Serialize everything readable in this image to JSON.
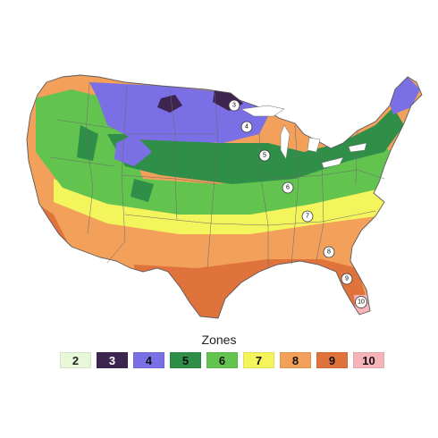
{
  "legend": {
    "title": "Zones",
    "items": [
      {
        "label": "2",
        "color": "#e7f7d8",
        "text_color": "#222222"
      },
      {
        "label": "3",
        "color": "#3d2550",
        "text_color": "#ffffff"
      },
      {
        "label": "4",
        "color": "#7b6fe6",
        "text_color": "#111111"
      },
      {
        "label": "5",
        "color": "#2f8f48",
        "text_color": "#111111"
      },
      {
        "label": "6",
        "color": "#62c44f",
        "text_color": "#111111"
      },
      {
        "label": "7",
        "color": "#f4f45c",
        "text_color": "#111111"
      },
      {
        "label": "8",
        "color": "#f2a05a",
        "text_color": "#111111"
      },
      {
        "label": "9",
        "color": "#e0723c",
        "text_color": "#111111"
      },
      {
        "label": "10",
        "color": "#f6b4b8",
        "text_color": "#111111"
      }
    ]
  },
  "markers": [
    {
      "label": "3"
    },
    {
      "label": "4"
    },
    {
      "label": "5"
    },
    {
      "label": "6"
    },
    {
      "label": "7"
    },
    {
      "label": "8"
    },
    {
      "label": "9"
    },
    {
      "label": "10"
    }
  ]
}
